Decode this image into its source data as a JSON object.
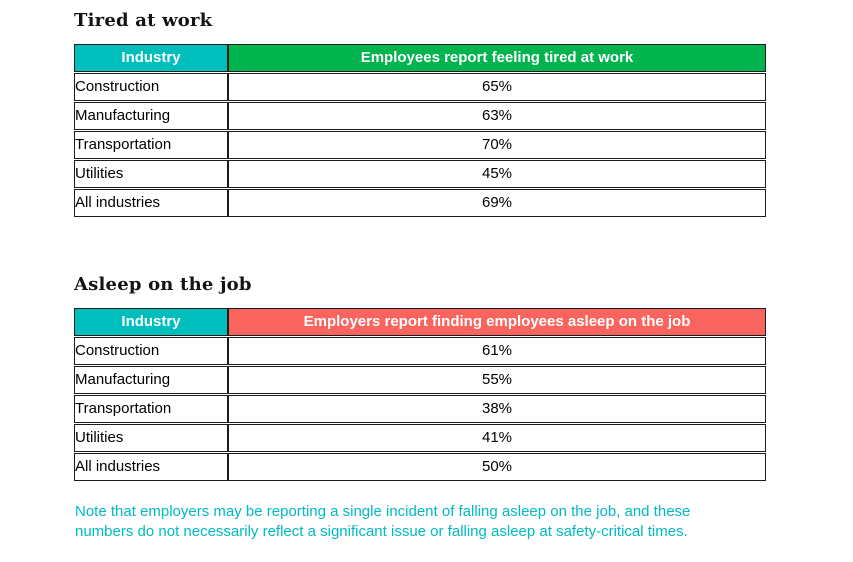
{
  "colors": {
    "industry_header_bg": "#00bebc",
    "tired_header_bg": "#02b44e",
    "asleep_header_bg": "#f9655e",
    "header_text": "#ffffff",
    "body_text": "#000000",
    "table_border": "#1c1c1c",
    "note_text": "#00bac4"
  },
  "tables": [
    {
      "heading": "Tired at work",
      "columns": [
        "Industry",
        "Employees report feeling tired at work"
      ],
      "rows": [
        {
          "industry": "Construction",
          "value": "65%"
        },
        {
          "industry": "Manufacturing",
          "value": "63%"
        },
        {
          "industry": "Transportation",
          "value": "70%"
        },
        {
          "industry": "Utilities",
          "value": "45%"
        },
        {
          "industry": "All industries",
          "value": "69%"
        }
      ]
    },
    {
      "heading": "Asleep on the job",
      "columns": [
        "Industry",
        "Employers report finding employees asleep on the job"
      ],
      "rows": [
        {
          "industry": "Construction",
          "value": "61%"
        },
        {
          "industry": "Manufacturing",
          "value": "55%"
        },
        {
          "industry": "Transportation",
          "value": "38%"
        },
        {
          "industry": "Utilities",
          "value": "41%"
        },
        {
          "industry": "All industries",
          "value": "50%"
        }
      ]
    }
  ],
  "note": {
    "line1": "Note that employers may be reporting a single incident of falling asleep on the job, and these",
    "line2": "numbers do not necessarily reflect a significant issue or falling asleep at safety-critical times."
  }
}
